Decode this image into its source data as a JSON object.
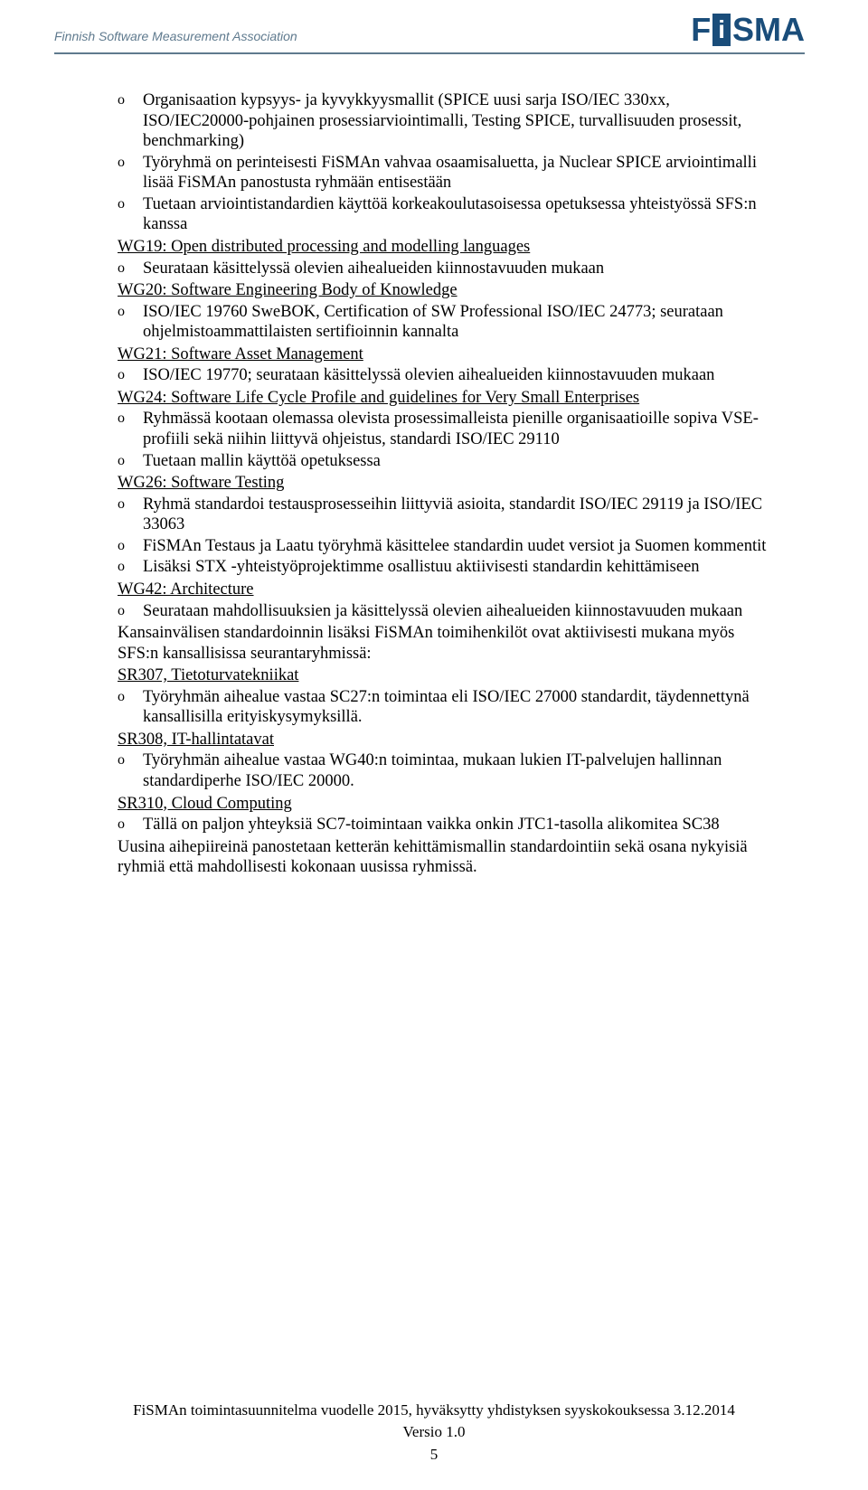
{
  "header": {
    "org_name": "Finnish Software Measurement Association",
    "logo_f": "F",
    "logo_i": "i",
    "logo_sma": "SMA"
  },
  "colors": {
    "header_text": "#5f7a8e",
    "header_line": "#5f7a8e",
    "logo_color": "#1a4d7a",
    "body_text": "#000000",
    "background": "#ffffff"
  },
  "body": {
    "item1": "Organisaation kypsyys- ja kyvykkyysmallit (SPICE uusi sarja ISO/IEC 330xx, ISO/IEC20000-pohjainen prosessiarviointimalli, Testing SPICE, turvallisuuden prosessit, benchmarking)",
    "item2": "Työryhmä on perinteisesti FiSMAn vahvaa osaamisaluetta, ja Nuclear SPICE arviointimalli lisää FiSMAn panostusta ryhmään entisestään",
    "item3": "Tuetaan arviointistandardien käyttöä korkeakoulutasoisessa opetuksessa yhteistyössä SFS:n kanssa",
    "wg19_head": "WG19: Open distributed processing and modelling languages",
    "wg19_i1": "Seurataan käsittelyssä olevien aihealueiden kiinnostavuuden mukaan",
    "wg20_head": "WG20: Software Engineering Body of Knowledge",
    "wg20_i1": "ISO/IEC 19760 SweBOK, Certification of SW Professional ISO/IEC 24773; seurataan ohjelmistoammattilaisten sertifioinnin kannalta",
    "wg21_head": "WG21: Software Asset Management",
    "wg21_i1": "ISO/IEC 19770; seurataan käsittelyssä olevien aihealueiden kiinnostavuuden mukaan",
    "wg24_head": "WG24: Software Life Cycle Profile and guidelines for Very Small Enterprises",
    "wg24_i1": "Ryhmässä kootaan olemassa olevista prosessimalleista pienille organisaatioille sopiva VSE-profiili sekä niihin liittyvä ohjeistus, standardi ISO/IEC 29110",
    "wg24_i2": "Tuetaan mallin käyttöä opetuksessa",
    "wg26_head": "WG26: Software Testing",
    "wg26_i1": "Ryhmä standardoi testausprosesseihin liittyviä asioita, standardit ISO/IEC 29119 ja ISO/IEC 33063",
    "wg26_i2": "FiSMAn Testaus ja Laatu työryhmä käsittelee standardin uudet versiot ja Suomen kommentit",
    "wg26_i3": "Lisäksi STX -yhteistyöprojektimme osallistuu aktiivisesti standardin kehittämiseen",
    "wg42_head": "WG42: Architecture",
    "wg42_i1": "Seurataan mahdollisuuksien ja käsittelyssä olevien aihealueiden kiinnostavuuden mukaan",
    "para1": "Kansainvälisen standardoinnin lisäksi FiSMAn toimihenkilöt ovat aktiivisesti mukana myös SFS:n kansallisissa seurantaryhmissä:",
    "sr307_head": "SR307, Tietoturvatekniikat",
    "sr307_i1": "Työryhmän aihealue vastaa SC27:n toimintaa eli ISO/IEC 27000 standardit, täydennettynä kansallisilla erityiskysymyksillä.",
    "sr308_head": "SR308, IT-hallintatavat",
    "sr308_i1": "Työryhmän aihealue vastaa WG40:n toimintaa, mukaan lukien IT-palvelujen hallinnan standardiperhe ISO/IEC 20000.",
    "sr310_head": "SR310, Cloud Computing",
    "sr310_i1": "Tällä on paljon yhteyksiä SC7-toimintaan vaikka onkin JTC1-tasolla alikomitea SC38",
    "para2": "Uusina aihepiireinä panostetaan ketterän kehittämismallin standardointiin sekä osana nykyisiä ryhmiä että mahdollisesti kokonaan uusissa ryhmissä."
  },
  "footer": {
    "line1": "FiSMAn toimintasuunnitelma vuodelle 2015, hyväksytty yhdistyksen syyskokouksessa 3.12.2014",
    "line2": "Versio 1.0",
    "page": "5"
  }
}
